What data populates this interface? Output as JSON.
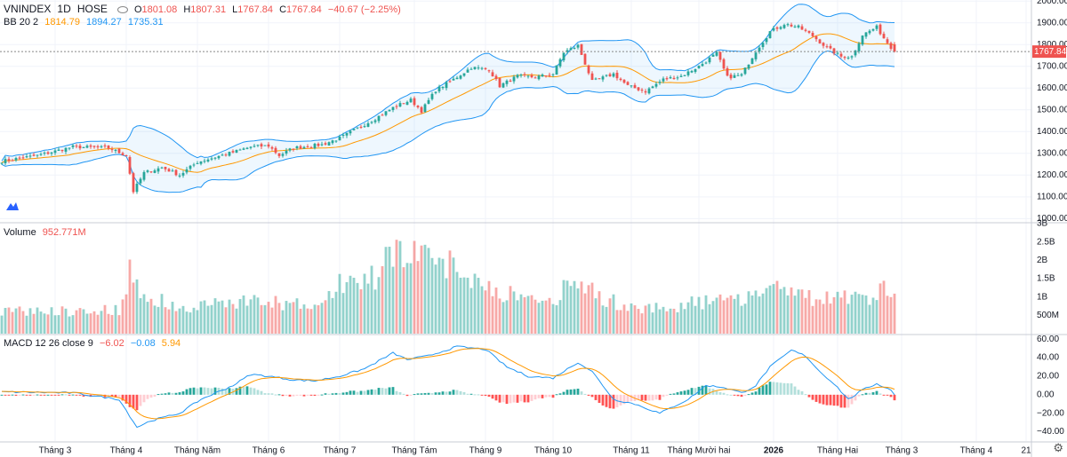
{
  "symbol": {
    "name": "VNINDEX",
    "interval": "1D",
    "exchange": "HOSE"
  },
  "ohlc": {
    "o_label": "O",
    "o": "1801.08",
    "h_label": "H",
    "h": "1807.31",
    "l_label": "L",
    "l": "1767.84",
    "c_label": "C",
    "c": "1767.84",
    "change": "−40.67 (−2.25%)"
  },
  "bb": {
    "label": "BB 20 2",
    "basis": "1814.79",
    "upper": "1894.27",
    "lower": "1735.31"
  },
  "volume": {
    "label": "Volume",
    "value": "952.771M"
  },
  "macd": {
    "label": "MACD 12 26 close 9",
    "hist": "−6.02",
    "macd": "−0.08",
    "signal": "5.94"
  },
  "colors": {
    "up": "#26a69a",
    "down": "#ef5350",
    "bb": "#2196f3",
    "basis": "#ff9800",
    "macd": "#2196f3",
    "signal": "#ff9800",
    "grid": "#f0f3fa",
    "last_price_bg": "#ef5350"
  },
  "chart_data": {
    "type": "candlestick",
    "price_axis": {
      "ticks": [
        1000,
        1100,
        1200,
        1300,
        1400,
        1500,
        1600,
        1700,
        1800,
        1900,
        2000
      ],
      "labels": [
        "1000.00",
        "1100.00",
        "1200.00",
        "1300.00",
        "1400.00",
        "1500.00",
        "1600.00",
        "1700.00",
        "1800.00",
        "1900.00",
        "2000.00"
      ],
      "range": [
        985,
        2005
      ]
    },
    "last_price": "1767.84",
    "volume_axis": {
      "ticks": [
        500000000,
        1000000000,
        1500000000,
        2000000000,
        2500000000,
        3000000000
      ],
      "labels": [
        "500M",
        "1B",
        "1.5B",
        "2B",
        "2.5B",
        "3B"
      ],
      "range": [
        0,
        3000000000
      ]
    },
    "macd_axis": {
      "ticks": [
        -40,
        -20,
        0,
        20,
        40,
        60
      ],
      "labels": [
        "−40.00",
        "−20.00",
        "0.00",
        "20.00",
        "40.00",
        "60.00"
      ],
      "range": [
        -50,
        65
      ]
    },
    "time_axis": {
      "labels": [
        "Tháng 3",
        "Tháng 4",
        "Tháng Năm",
        "Tháng 6",
        "Tháng 7",
        "Tháng Tám",
        "Tháng 9",
        "Tháng 10",
        "Tháng 11",
        "Tháng Mười hai",
        "2026",
        "Tháng Hai",
        "Tháng 3",
        "Tháng 4",
        "21"
      ],
      "bar_index": [
        15,
        35,
        55,
        75,
        95,
        116,
        136,
        155,
        177,
        196,
        217,
        235,
        253,
        274,
        288
      ]
    },
    "close_anchors": [
      [
        0,
        1265
      ],
      [
        10,
        1290
      ],
      [
        20,
        1330
      ],
      [
        30,
        1325
      ],
      [
        35,
        1290
      ],
      [
        37,
        1125
      ],
      [
        40,
        1210
      ],
      [
        45,
        1235
      ],
      [
        50,
        1200
      ],
      [
        55,
        1260
      ],
      [
        65,
        1305
      ],
      [
        70,
        1330
      ],
      [
        75,
        1335
      ],
      [
        78,
        1290
      ],
      [
        82,
        1325
      ],
      [
        90,
        1340
      ],
      [
        95,
        1370
      ],
      [
        100,
        1415
      ],
      [
        105,
        1460
      ],
      [
        110,
        1510
      ],
      [
        112,
        1525
      ],
      [
        115,
        1545
      ],
      [
        118,
        1495
      ],
      [
        122,
        1590
      ],
      [
        127,
        1640
      ],
      [
        132,
        1695
      ],
      [
        137,
        1685
      ],
      [
        140,
        1610
      ],
      [
        145,
        1655
      ],
      [
        150,
        1650
      ],
      [
        155,
        1665
      ],
      [
        158,
        1765
      ],
      [
        162,
        1795
      ],
      [
        166,
        1630
      ],
      [
        172,
        1665
      ],
      [
        176,
        1610
      ],
      [
        181,
        1585
      ],
      [
        186,
        1640
      ],
      [
        191,
        1655
      ],
      [
        196,
        1700
      ],
      [
        201,
        1760
      ],
      [
        204,
        1650
      ],
      [
        208,
        1660
      ],
      [
        212,
        1770
      ],
      [
        216,
        1860
      ],
      [
        220,
        1895
      ],
      [
        224,
        1880
      ],
      [
        228,
        1840
      ],
      [
        232,
        1785
      ],
      [
        236,
        1745
      ],
      [
        239,
        1745
      ],
      [
        242,
        1845
      ],
      [
        246,
        1880
      ],
      [
        248,
        1830
      ],
      [
        251,
        1768
      ]
    ],
    "volume_anchors": [
      [
        0,
        0.62
      ],
      [
        20,
        0.62
      ],
      [
        33,
        0.66
      ],
      [
        36,
        1.75
      ],
      [
        38,
        1.2
      ],
      [
        45,
        0.9
      ],
      [
        50,
        0.63
      ],
      [
        60,
        0.85
      ],
      [
        70,
        0.9
      ],
      [
        75,
        0.85
      ],
      [
        80,
        0.82
      ],
      [
        90,
        0.72
      ],
      [
        95,
        1.4
      ],
      [
        105,
        1.5
      ],
      [
        110,
        2.4
      ],
      [
        115,
        2.2
      ],
      [
        120,
        1.9
      ],
      [
        125,
        2.0
      ],
      [
        130,
        1.6
      ],
      [
        135,
        1.45
      ],
      [
        140,
        1.15
      ],
      [
        150,
        0.9
      ],
      [
        155,
        0.86
      ],
      [
        160,
        1.4
      ],
      [
        165,
        1.25
      ],
      [
        170,
        0.95
      ],
      [
        175,
        0.75
      ],
      [
        180,
        0.72
      ],
      [
        190,
        0.73
      ],
      [
        195,
        0.85
      ],
      [
        200,
        0.88
      ],
      [
        205,
        0.9
      ],
      [
        210,
        1.05
      ],
      [
        215,
        1.3
      ],
      [
        220,
        1.35
      ],
      [
        225,
        1.0
      ],
      [
        235,
        0.92
      ],
      [
        245,
        1.05
      ],
      [
        250,
        1.25
      ],
      [
        251,
        0.95
      ]
    ],
    "macd_anchors": [
      [
        0,
        3
      ],
      [
        20,
        2
      ],
      [
        33,
        -5
      ],
      [
        38,
        -35
      ],
      [
        42,
        -28
      ],
      [
        50,
        -20
      ],
      [
        56,
        -5
      ],
      [
        65,
        10
      ],
      [
        70,
        22
      ],
      [
        75,
        20
      ],
      [
        82,
        16
      ],
      [
        88,
        15
      ],
      [
        95,
        20
      ],
      [
        102,
        28
      ],
      [
        110,
        45
      ],
      [
        114,
        38
      ],
      [
        120,
        42
      ],
      [
        128,
        52
      ],
      [
        136,
        49
      ],
      [
        142,
        30
      ],
      [
        148,
        20
      ],
      [
        155,
        18
      ],
      [
        162,
        35
      ],
      [
        166,
        25
      ],
      [
        172,
        -5
      ],
      [
        178,
        -10
      ],
      [
        185,
        -20
      ],
      [
        193,
        -5
      ],
      [
        198,
        10
      ],
      [
        203,
        8
      ],
      [
        208,
        2
      ],
      [
        212,
        10
      ],
      [
        216,
        30
      ],
      [
        222,
        48
      ],
      [
        226,
        42
      ],
      [
        230,
        25
      ],
      [
        234,
        12
      ],
      [
        238,
        -5
      ],
      [
        242,
        5
      ],
      [
        246,
        12
      ],
      [
        250,
        5
      ],
      [
        251,
        -0.08
      ]
    ]
  }
}
